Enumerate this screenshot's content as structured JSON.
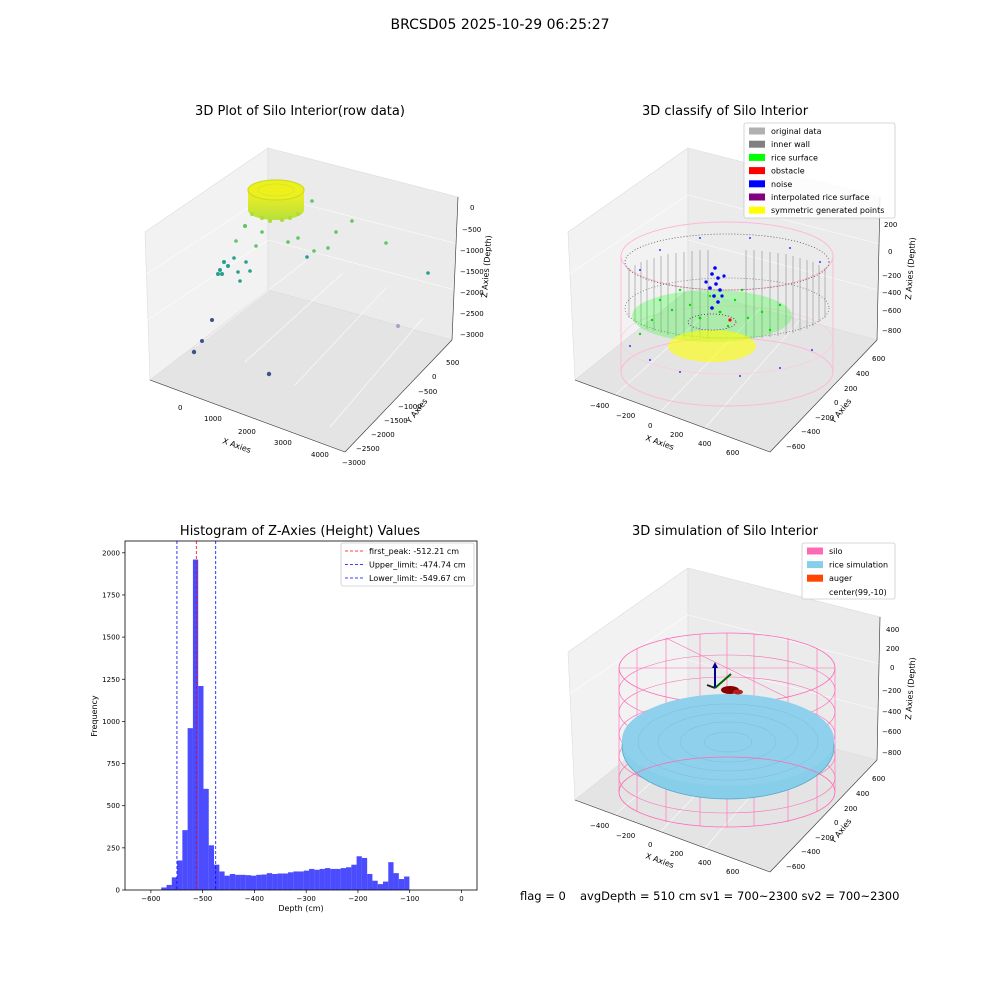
{
  "figure": {
    "suptitle": "BRCSD05 2025-10-29 06:25:27"
  },
  "panels": {
    "raw": {
      "title": "3D Plot of Silo Interior(row data)",
      "xlabel": "X Axies",
      "ylabel": "Y Axies",
      "zlabel": "Z Axies (Depth)",
      "x_ticks": [
        "0",
        "1000",
        "2000",
        "3000",
        "4000"
      ],
      "y_ticks": [
        "500",
        "0",
        "−500",
        "−1000",
        "−1500",
        "−2000",
        "−2500",
        "−3000"
      ],
      "z_ticks": [
        "0",
        "−500",
        "−1000",
        "−1500",
        "−2000",
        "−2500",
        "−3000"
      ]
    },
    "classify": {
      "title": "3D classify of Silo Interior",
      "xlabel": "X Axies",
      "ylabel": "Y Axies",
      "zlabel": "Z Axies (Depth)",
      "x_ticks": [
        "−400",
        "−200",
        "0",
        "200",
        "400",
        "600"
      ],
      "y_ticks": [
        "600",
        "400",
        "200",
        "0",
        "−200",
        "−400",
        "−600"
      ],
      "z_ticks": [
        "200",
        "0",
        "−200",
        "−400",
        "−600",
        "−800"
      ],
      "legend": [
        {
          "label": "original data",
          "color": "#b0b0b0"
        },
        {
          "label": "inner wall",
          "color": "#808080"
        },
        {
          "label": "rice surface",
          "color": "#00ff00"
        },
        {
          "label": "obstacle",
          "color": "#ff0000"
        },
        {
          "label": "noise",
          "color": "#0000ff"
        },
        {
          "label": "interpolated rice surface",
          "color": "#800080"
        },
        {
          "label": "symmetric generated points",
          "color": "#ffff00"
        }
      ]
    },
    "simulation": {
      "title": "3D simulation of Silo Interior",
      "xlabel": "X Axies",
      "ylabel": "Y Axies",
      "zlabel": "Z Axies (Depth)",
      "x_ticks": [
        "−400",
        "−200",
        "0",
        "200",
        "400",
        "600"
      ],
      "y_ticks": [
        "600",
        "400",
        "200",
        "0",
        "−200",
        "−400",
        "−600"
      ],
      "z_ticks": [
        "400",
        "200",
        "0",
        "−200",
        "−400",
        "−600",
        "−800"
      ],
      "legend": [
        {
          "label": "silo",
          "color": "#ff69b4"
        },
        {
          "label": "rice simulation",
          "color": "#87ceeb"
        },
        {
          "label": "auger",
          "color": "#ff4500"
        },
        {
          "label": "center(99,-10)",
          "color": "#ffffff"
        }
      ]
    }
  },
  "footer": {
    "flag": "flag = 0",
    "stats": "avgDepth = 510 cm  sv1 = 700~2300  sv2 = 700~2300"
  },
  "chart_data": {
    "type": "bar",
    "title": "Histogram of Z-Axies (Height) Values",
    "xlabel": "Depth (cm)",
    "ylabel": "Frequency",
    "xlim": [
      -650,
      30
    ],
    "ylim": [
      0,
      2070
    ],
    "x_ticks": [
      -600,
      -500,
      -400,
      -300,
      -200,
      -100,
      0
    ],
    "y_ticks": [
      0,
      250,
      500,
      750,
      1000,
      1250,
      1500,
      1750,
      2000
    ],
    "bin_edges_start": -580,
    "bin_width": 10.2,
    "values": [
      15,
      30,
      75,
      175,
      355,
      960,
      1960,
      1210,
      600,
      265,
      150,
      110,
      85,
      95,
      90,
      90,
      88,
      85,
      90,
      92,
      100,
      95,
      98,
      98,
      105,
      110,
      110,
      115,
      125,
      120,
      125,
      130,
      125,
      125,
      130,
      135,
      150,
      200,
      190,
      95,
      55,
      35,
      50,
      165,
      100,
      65,
      80
    ],
    "color": "#0000ff",
    "vlines": [
      {
        "label": "first_peak: -512.21 cm",
        "x": -512.21,
        "color": "#ff0000"
      },
      {
        "label": "Upper_limit: -474.74 cm",
        "x": -474.74,
        "color": "#0000ff"
      },
      {
        "label": "Lower_limit: -549.67 cm",
        "x": -549.67,
        "color": "#0000ff"
      }
    ]
  }
}
